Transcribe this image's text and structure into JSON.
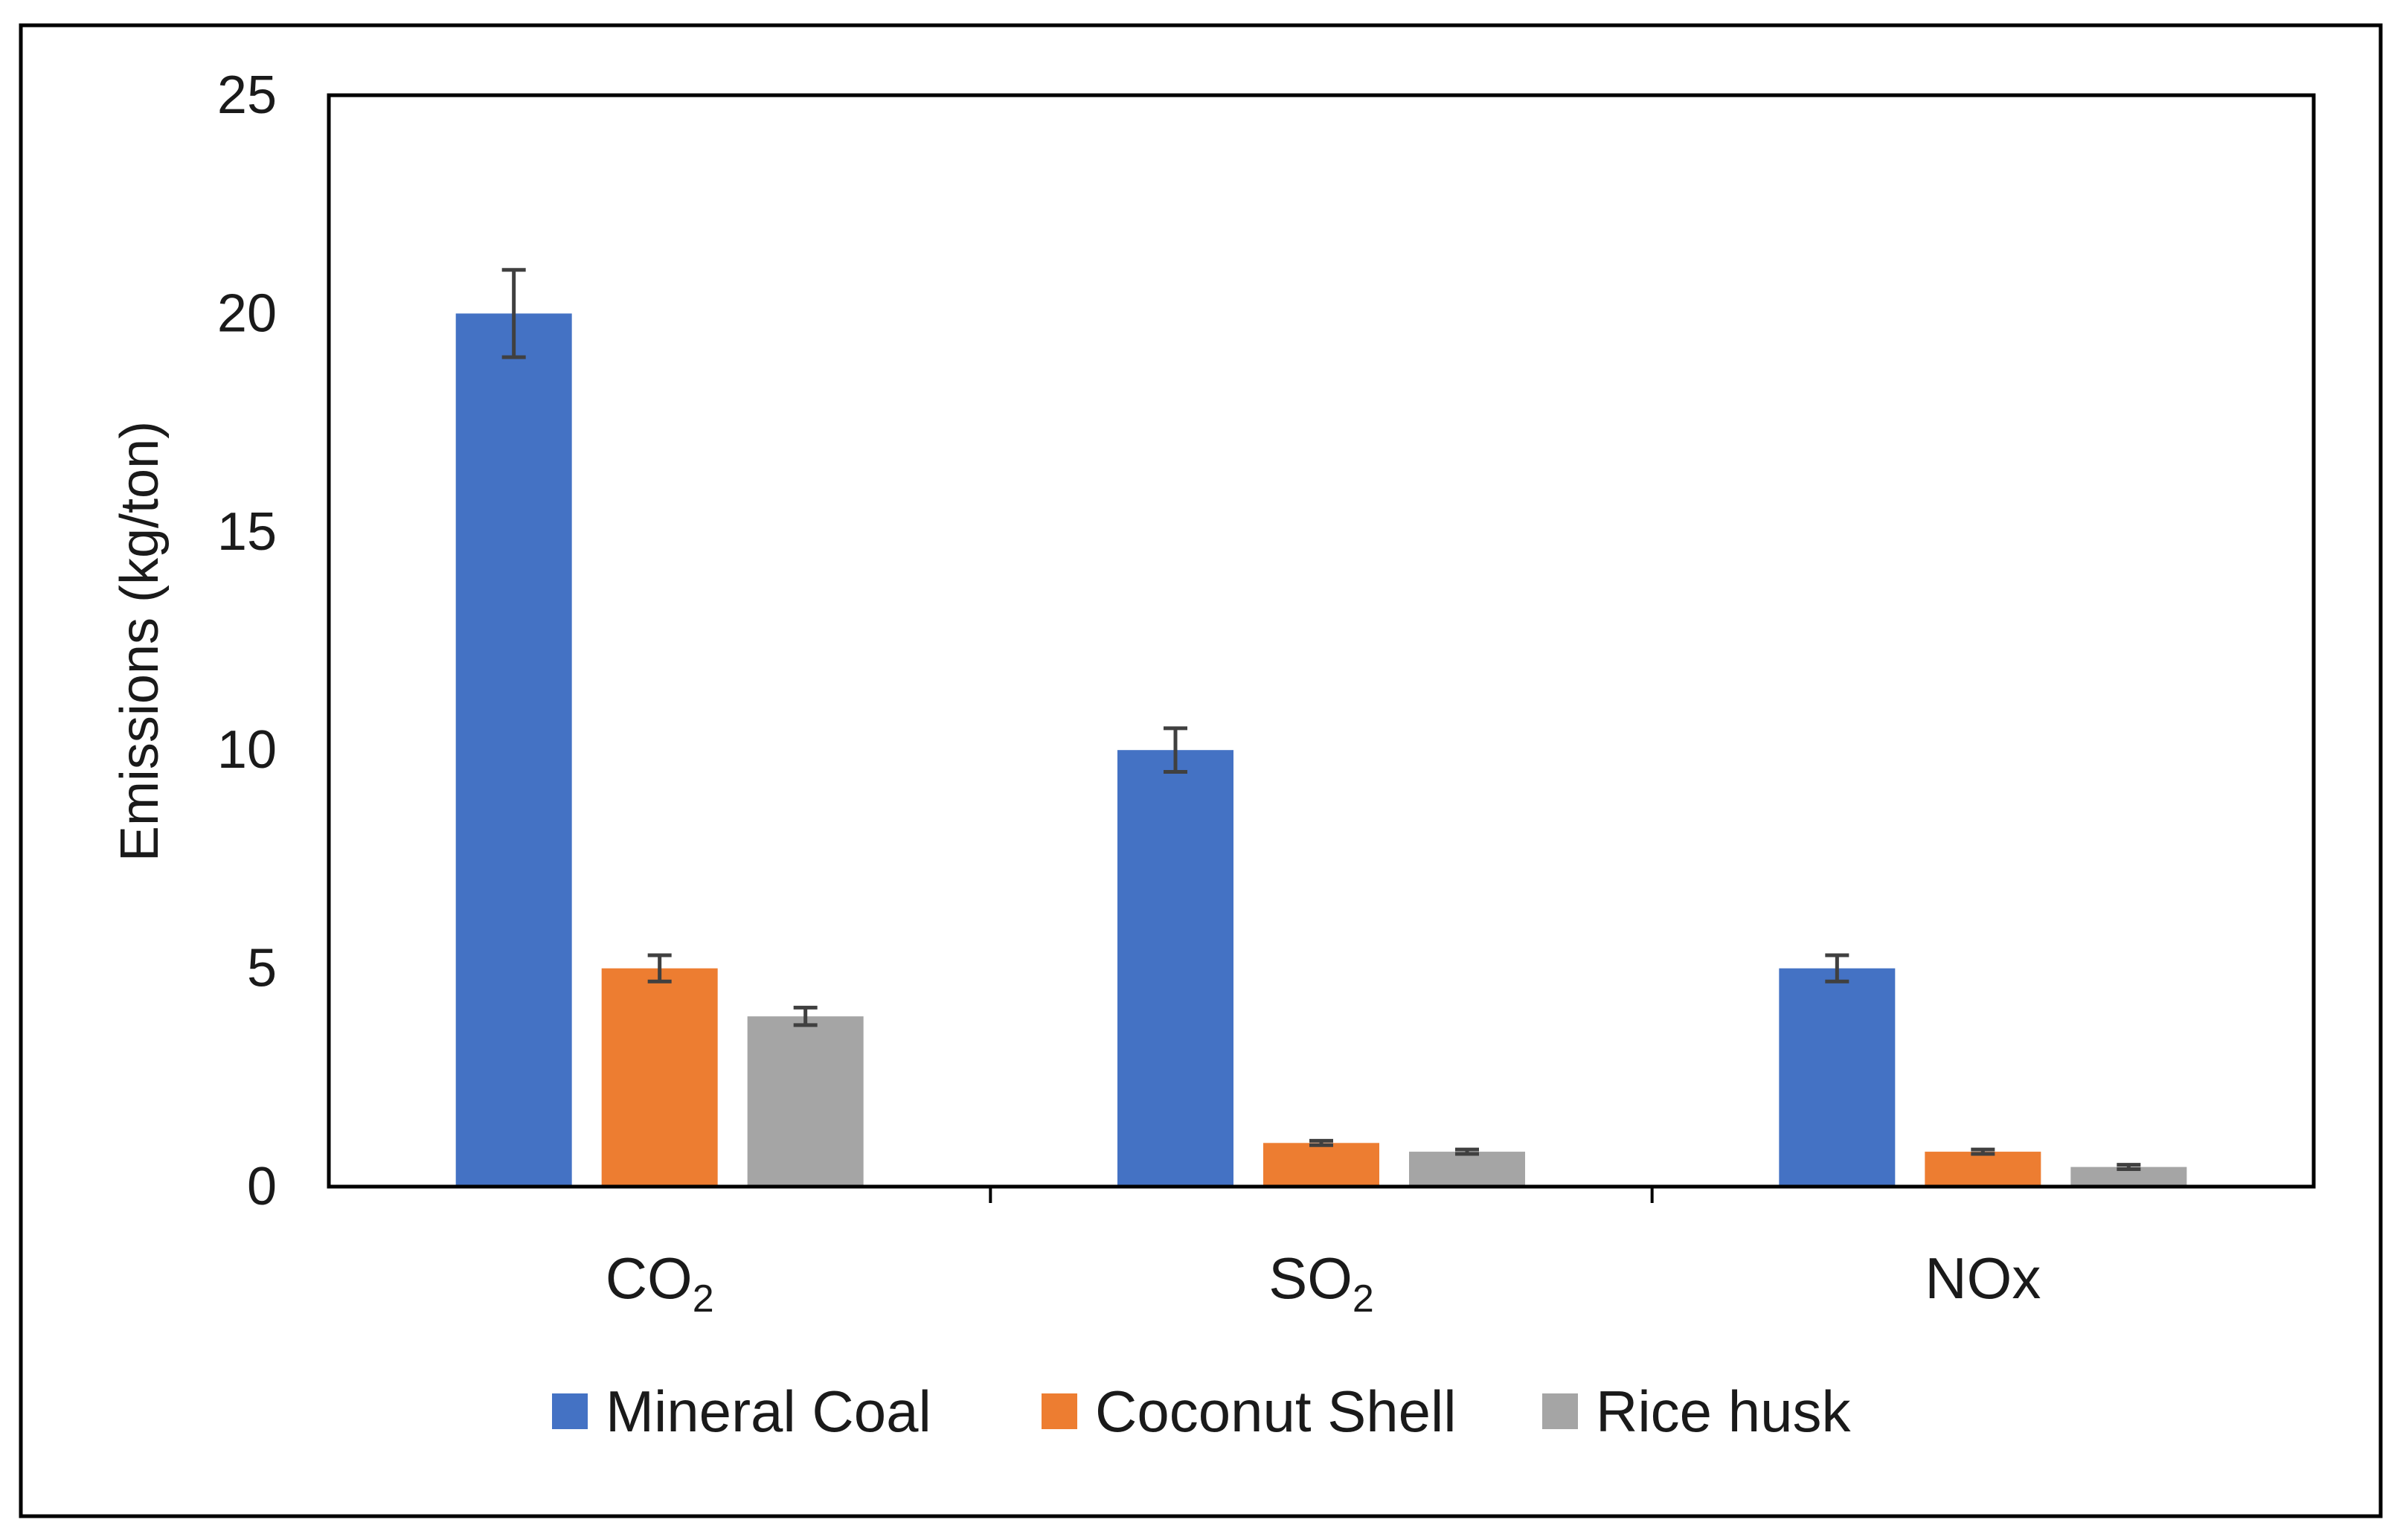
{
  "chart_data": {
    "type": "bar",
    "title": "",
    "xlabel": "",
    "ylabel": "Emissions (kg/ton)",
    "ylim": [
      0,
      25
    ],
    "yticks": [
      "0",
      "5",
      "10",
      "15",
      "20",
      "25"
    ],
    "grid": false,
    "legend_position": "bottom",
    "categories": [
      {
        "main": "CO",
        "sub": "2"
      },
      {
        "main": "SO",
        "sub": "2"
      },
      {
        "main": "NOx",
        "sub": ""
      }
    ],
    "series": [
      {
        "name": "Mineral Coal",
        "color": "#4472C4",
        "values": [
          20,
          10,
          5
        ],
        "errors": [
          1,
          0.5,
          0.3
        ]
      },
      {
        "name": "Coconut Shell",
        "color": "#ED7D31",
        "values": [
          5,
          1,
          0.8
        ],
        "errors": [
          0.3,
          0.05,
          0.05
        ]
      },
      {
        "name": "Rice husk",
        "color": "#A5A5A5",
        "values": [
          3.9,
          0.8,
          0.45
        ],
        "errors": [
          0.2,
          0.05,
          0.05
        ]
      }
    ]
  }
}
